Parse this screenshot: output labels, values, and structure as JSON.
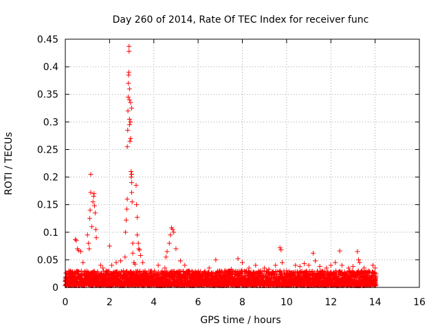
{
  "chart_data": {
    "type": "scatter",
    "title": "Day 260 of 2014, Rate Of TEC Index for receiver func",
    "xlabel": "GPS time / hours",
    "ylabel": "ROTI / TECUs",
    "xlim": [
      0,
      16
    ],
    "ylim": [
      0,
      0.45
    ],
    "xticks": [
      "0",
      "2",
      "4",
      "6",
      "8",
      "10",
      "12",
      "14",
      "16"
    ],
    "yticks": [
      "0",
      "0.05",
      "0.1",
      "0.15",
      "0.2",
      "0.25",
      "0.3",
      "0.35",
      "0.4",
      "0.45"
    ],
    "grid": true,
    "marker": "+",
    "color": "#ff0000",
    "baseline": {
      "x_start": 0,
      "x_end": 14.05,
      "typical_range": [
        0.003,
        0.03
      ],
      "note": "dense band of points, ROTI mostly 0-0.03 TECU/min"
    },
    "series": [
      {
        "name": "ROTI",
        "points": [
          [
            0.45,
            0.087
          ],
          [
            0.5,
            0.085
          ],
          [
            0.55,
            0.07
          ],
          [
            0.6,
            0.067
          ],
          [
            0.7,
            0.065
          ],
          [
            0.8,
            0.045
          ],
          [
            1.0,
            0.095
          ],
          [
            1.05,
            0.08
          ],
          [
            1.08,
            0.07
          ],
          [
            1.1,
            0.125
          ],
          [
            1.12,
            0.14
          ],
          [
            1.15,
            0.172
          ],
          [
            1.15,
            0.205
          ],
          [
            1.2,
            0.11
          ],
          [
            1.25,
            0.155
          ],
          [
            1.28,
            0.165
          ],
          [
            1.3,
            0.17
          ],
          [
            1.32,
            0.148
          ],
          [
            1.35,
            0.135
          ],
          [
            1.38,
            0.105
          ],
          [
            1.4,
            0.09
          ],
          [
            1.6,
            0.04
          ],
          [
            1.7,
            0.035
          ],
          [
            2.0,
            0.075
          ],
          [
            2.1,
            0.04
          ],
          [
            2.3,
            0.045
          ],
          [
            2.5,
            0.048
          ],
          [
            2.7,
            0.055
          ],
          [
            2.72,
            0.1
          ],
          [
            2.75,
            0.122
          ],
          [
            2.78,
            0.142
          ],
          [
            2.8,
            0.16
          ],
          [
            2.8,
            0.255
          ],
          [
            2.82,
            0.285
          ],
          [
            2.83,
            0.32
          ],
          [
            2.84,
            0.345
          ],
          [
            2.85,
            0.37
          ],
          [
            2.86,
            0.385
          ],
          [
            2.87,
            0.39
          ],
          [
            2.88,
            0.428
          ],
          [
            2.88,
            0.437
          ],
          [
            2.9,
            0.36
          ],
          [
            2.9,
            0.34
          ],
          [
            2.9,
            0.305
          ],
          [
            2.9,
            0.295
          ],
          [
            2.92,
            0.265
          ],
          [
            2.95,
            0.335
          ],
          [
            2.95,
            0.3
          ],
          [
            2.95,
            0.27
          ],
          [
            2.97,
            0.21
          ],
          [
            2.98,
            0.2
          ],
          [
            3.0,
            0.325
          ],
          [
            3.0,
            0.205
          ],
          [
            3.0,
            0.19
          ],
          [
            3.0,
            0.172
          ],
          [
            3.02,
            0.155
          ],
          [
            3.05,
            0.08
          ],
          [
            3.05,
            0.062
          ],
          [
            3.1,
            0.045
          ],
          [
            3.15,
            0.042
          ],
          [
            3.2,
            0.185
          ],
          [
            3.22,
            0.15
          ],
          [
            3.25,
            0.127
          ],
          [
            3.25,
            0.095
          ],
          [
            3.3,
            0.08
          ],
          [
            3.32,
            0.07
          ],
          [
            3.35,
            0.068
          ],
          [
            3.4,
            0.058
          ],
          [
            3.5,
            0.045
          ],
          [
            3.6,
            0.03
          ],
          [
            4.2,
            0.04
          ],
          [
            4.5,
            0.035
          ],
          [
            4.55,
            0.055
          ],
          [
            4.6,
            0.065
          ],
          [
            4.7,
            0.08
          ],
          [
            4.75,
            0.095
          ],
          [
            4.8,
            0.108
          ],
          [
            4.85,
            0.105
          ],
          [
            4.9,
            0.1
          ],
          [
            5.0,
            0.07
          ],
          [
            5.2,
            0.048
          ],
          [
            5.4,
            0.04
          ],
          [
            5.6,
            0.03
          ],
          [
            6.0,
            0.028
          ],
          [
            6.5,
            0.035
          ],
          [
            6.8,
            0.05
          ],
          [
            7.2,
            0.03
          ],
          [
            7.5,
            0.033
          ],
          [
            7.8,
            0.052
          ],
          [
            8.0,
            0.045
          ],
          [
            8.3,
            0.035
          ],
          [
            8.6,
            0.04
          ],
          [
            9.0,
            0.035
          ],
          [
            9.2,
            0.033
          ],
          [
            9.5,
            0.04
          ],
          [
            9.7,
            0.072
          ],
          [
            9.75,
            0.068
          ],
          [
            9.8,
            0.045
          ],
          [
            10.0,
            0.03
          ],
          [
            10.4,
            0.04
          ],
          [
            10.6,
            0.038
          ],
          [
            10.8,
            0.043
          ],
          [
            11.0,
            0.04
          ],
          [
            11.2,
            0.062
          ],
          [
            11.3,
            0.048
          ],
          [
            11.5,
            0.038
          ],
          [
            11.8,
            0.035
          ],
          [
            12.0,
            0.04
          ],
          [
            12.2,
            0.045
          ],
          [
            12.4,
            0.066
          ],
          [
            12.5,
            0.04
          ],
          [
            12.8,
            0.035
          ],
          [
            13.0,
            0.038
          ],
          [
            13.2,
            0.065
          ],
          [
            13.25,
            0.05
          ],
          [
            13.3,
            0.045
          ],
          [
            13.5,
            0.035
          ],
          [
            13.7,
            0.03
          ],
          [
            13.9,
            0.04
          ],
          [
            14.0,
            0.035
          ]
        ]
      }
    ]
  }
}
